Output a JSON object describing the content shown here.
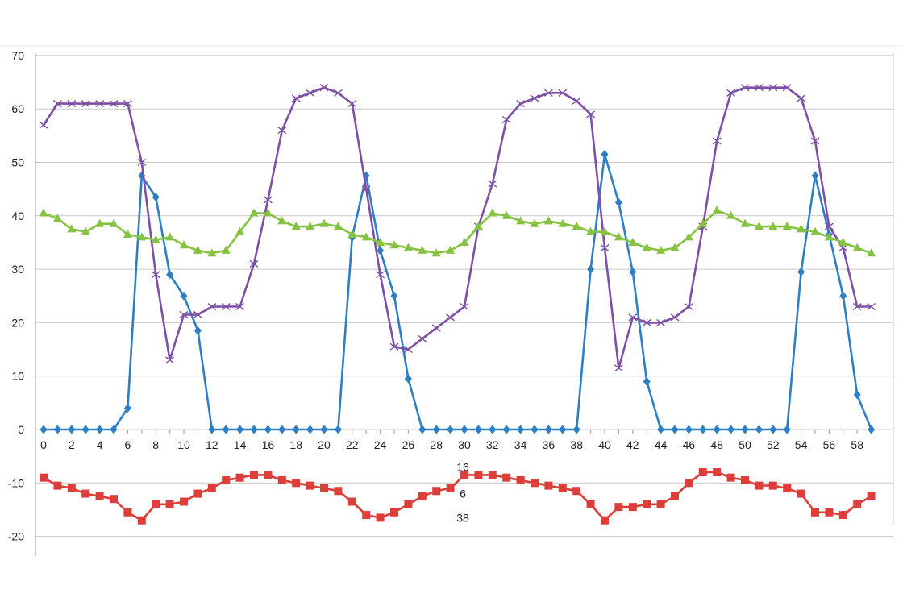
{
  "chart_data": {
    "type": "line",
    "title": "",
    "xlabel": "",
    "ylabel": "",
    "xlim": [
      0,
      59
    ],
    "ylim": [
      -24,
      70
    ],
    "grid": true,
    "legend": "none",
    "yticks": [
      -20,
      -10,
      0,
      10,
      20,
      30,
      40,
      50,
      60,
      70
    ],
    "xticks": [
      0,
      2,
      4,
      6,
      8,
      10,
      12,
      14,
      16,
      18,
      20,
      22,
      24,
      26,
      28,
      30,
      32,
      34,
      36,
      38,
      40,
      42,
      44,
      46,
      48,
      50,
      52,
      54,
      56,
      58
    ],
    "ytick_labels": [
      "-20",
      "-10",
      "0",
      "10",
      "20",
      "30",
      "40",
      "50",
      "60",
      "70"
    ],
    "xtick_labels": [
      "0",
      "2",
      "4",
      "6",
      "8",
      "10",
      "12",
      "14",
      "16",
      "18",
      "20",
      "22",
      "24",
      "26",
      "28",
      "30",
      "32",
      "34",
      "36",
      "38",
      "40",
      "42",
      "44",
      "46",
      "48",
      "50",
      "52",
      "54",
      "56",
      "58"
    ],
    "annotations": [
      {
        "text": "16",
        "x": 30,
        "y": -7
      },
      {
        "text": "6",
        "x": 30,
        "y": -12
      },
      {
        "text": "38",
        "x": 30,
        "y": -16.5
      }
    ],
    "series": [
      {
        "color": "#2e7ec4",
        "marker": "diamond",
        "values": [
          0,
          0,
          0,
          0,
          0,
          0,
          4,
          47.5,
          43.5,
          29,
          25,
          18.5,
          0,
          0,
          0,
          0,
          0,
          0,
          0,
          0,
          0,
          0,
          36,
          47.5,
          33.5,
          25,
          9.5,
          0,
          0,
          0,
          0,
          0,
          0,
          0,
          0,
          0,
          0,
          0,
          0,
          30,
          51.5,
          42.5,
          29.5,
          9,
          0,
          0,
          0,
          0,
          0,
          0,
          0,
          0,
          0,
          0,
          29.5,
          47.5,
          36.5,
          25,
          6.5,
          0
        ]
      },
      {
        "color": "#7e4fa6",
        "marker": "x",
        "values": [
          57,
          61,
          61,
          61,
          61,
          61,
          61,
          50,
          29,
          13,
          21.5,
          21.5,
          23,
          23,
          23,
          31,
          43,
          56,
          62,
          63,
          64,
          63,
          61,
          45,
          29,
          15.5,
          15,
          17,
          19,
          21,
          23,
          38,
          46,
          58,
          61,
          62,
          63,
          63,
          61.5,
          59,
          34,
          11.5,
          21,
          20,
          20,
          21,
          23,
          38,
          54,
          63,
          64,
          64,
          64,
          64,
          62,
          54,
          38,
          34,
          23,
          23
        ]
      },
      {
        "color": "#86c341",
        "marker": "triangle",
        "values": [
          40.5,
          39.5,
          37.5,
          37,
          38.5,
          38.5,
          36.5,
          36,
          35.5,
          36,
          34.5,
          33.5,
          33,
          33.5,
          37,
          40.5,
          40.5,
          39,
          38,
          38,
          38.5,
          38,
          36.5,
          36,
          35,
          34.5,
          34,
          33.5,
          33,
          33.5,
          35,
          38,
          40.5,
          40,
          39,
          38.5,
          39,
          38.5,
          38,
          37,
          37,
          36,
          35,
          34,
          33.5,
          34,
          36,
          38.5,
          41,
          40,
          38.5,
          38,
          38,
          38,
          37.5,
          37,
          36,
          35,
          34,
          33
        ]
      },
      {
        "color": "#de3e39",
        "marker": "square",
        "values": [
          -9,
          -10.5,
          -11,
          -12,
          -12.5,
          -13,
          -15.5,
          -17,
          -14,
          -14,
          -13.5,
          -12,
          -11,
          -9.5,
          -9,
          -8.5,
          -8.5,
          -9.5,
          -10,
          -10.5,
          -11,
          -11.5,
          -13.5,
          -16,
          -16.5,
          -15.5,
          -14,
          -12.5,
          -11.5,
          -11,
          -8.5,
          -8.5,
          -8.5,
          -9,
          -9.5,
          -10,
          -10.5,
          -11,
          -11.5,
          -14,
          -17,
          -14.5,
          -14.5,
          -14,
          -14,
          -12.5,
          -10,
          -8,
          -8,
          -9,
          -9.5,
          -10.5,
          -10.5,
          -11,
          -12,
          -15.5,
          -15.5,
          -16,
          -14,
          -12.5
        ]
      }
    ]
  }
}
